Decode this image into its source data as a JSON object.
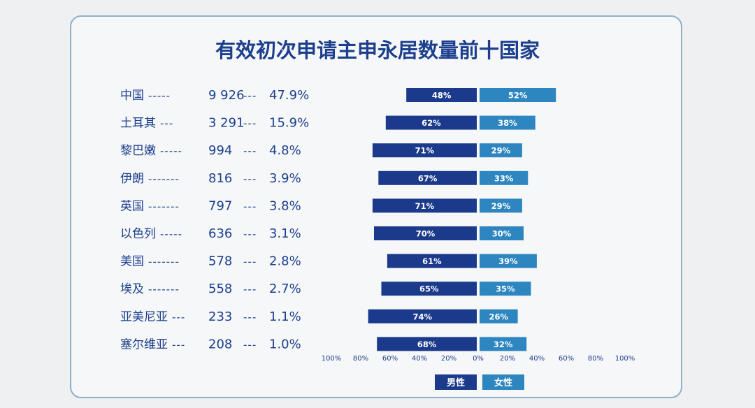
{
  "chart_data": {
    "type": "bar",
    "title": "有效初次申请主申永居数量前十国家",
    "rows": [
      {
        "country": "中国",
        "sep1": "-----",
        "count": "9 926",
        "sep2": "---",
        "share": "47.9%"
      },
      {
        "country": "土耳其",
        "sep1": "---",
        "count": "3 291",
        "sep2": "---",
        "share": "15.9%"
      },
      {
        "country": "黎巴嫩",
        "sep1": "-----",
        "count": "994",
        "sep2": "---",
        "share": "4.8%"
      },
      {
        "country": "伊朗",
        "sep1": "-------",
        "count": "816",
        "sep2": "---",
        "share": "3.9%"
      },
      {
        "country": "英国",
        "sep1": "-------",
        "count": "797",
        "sep2": "---",
        "share": "3.8%"
      },
      {
        "country": "以色列",
        "sep1": "-----",
        "count": "636",
        "sep2": "---",
        "share": "3.1%"
      },
      {
        "country": "美国",
        "sep1": "-------",
        "count": "578",
        "sep2": "---",
        "share": "2.8%"
      },
      {
        "country": "埃及",
        "sep1": "-------",
        "count": "558",
        "sep2": "---",
        "share": "2.7%"
      },
      {
        "country": "亚美尼亚",
        "sep1": "---",
        "count": "233",
        "sep2": "---",
        "share": "1.1%"
      },
      {
        "country": "塞尔维亚",
        "sep1": "---",
        "count": "208",
        "sep2": "---",
        "share": "1.0%"
      }
    ],
    "series": [
      {
        "name": "男性",
        "color": "#1b3a8c",
        "values": [
          48,
          62,
          71,
          67,
          71,
          70,
          61,
          65,
          74,
          68
        ]
      },
      {
        "name": "女性",
        "color": "#2e86c1",
        "values": [
          52,
          38,
          29,
          33,
          29,
          30,
          39,
          35,
          26,
          32
        ]
      }
    ],
    "x_ticks": [
      "100%",
      "80%",
      "60%",
      "40%",
      "20%",
      "0%",
      "20%",
      "40%",
      "60%",
      "80%",
      "100%"
    ],
    "x_range": [
      -100,
      100
    ],
    "legend_position": "bottom-center",
    "grid": false
  }
}
